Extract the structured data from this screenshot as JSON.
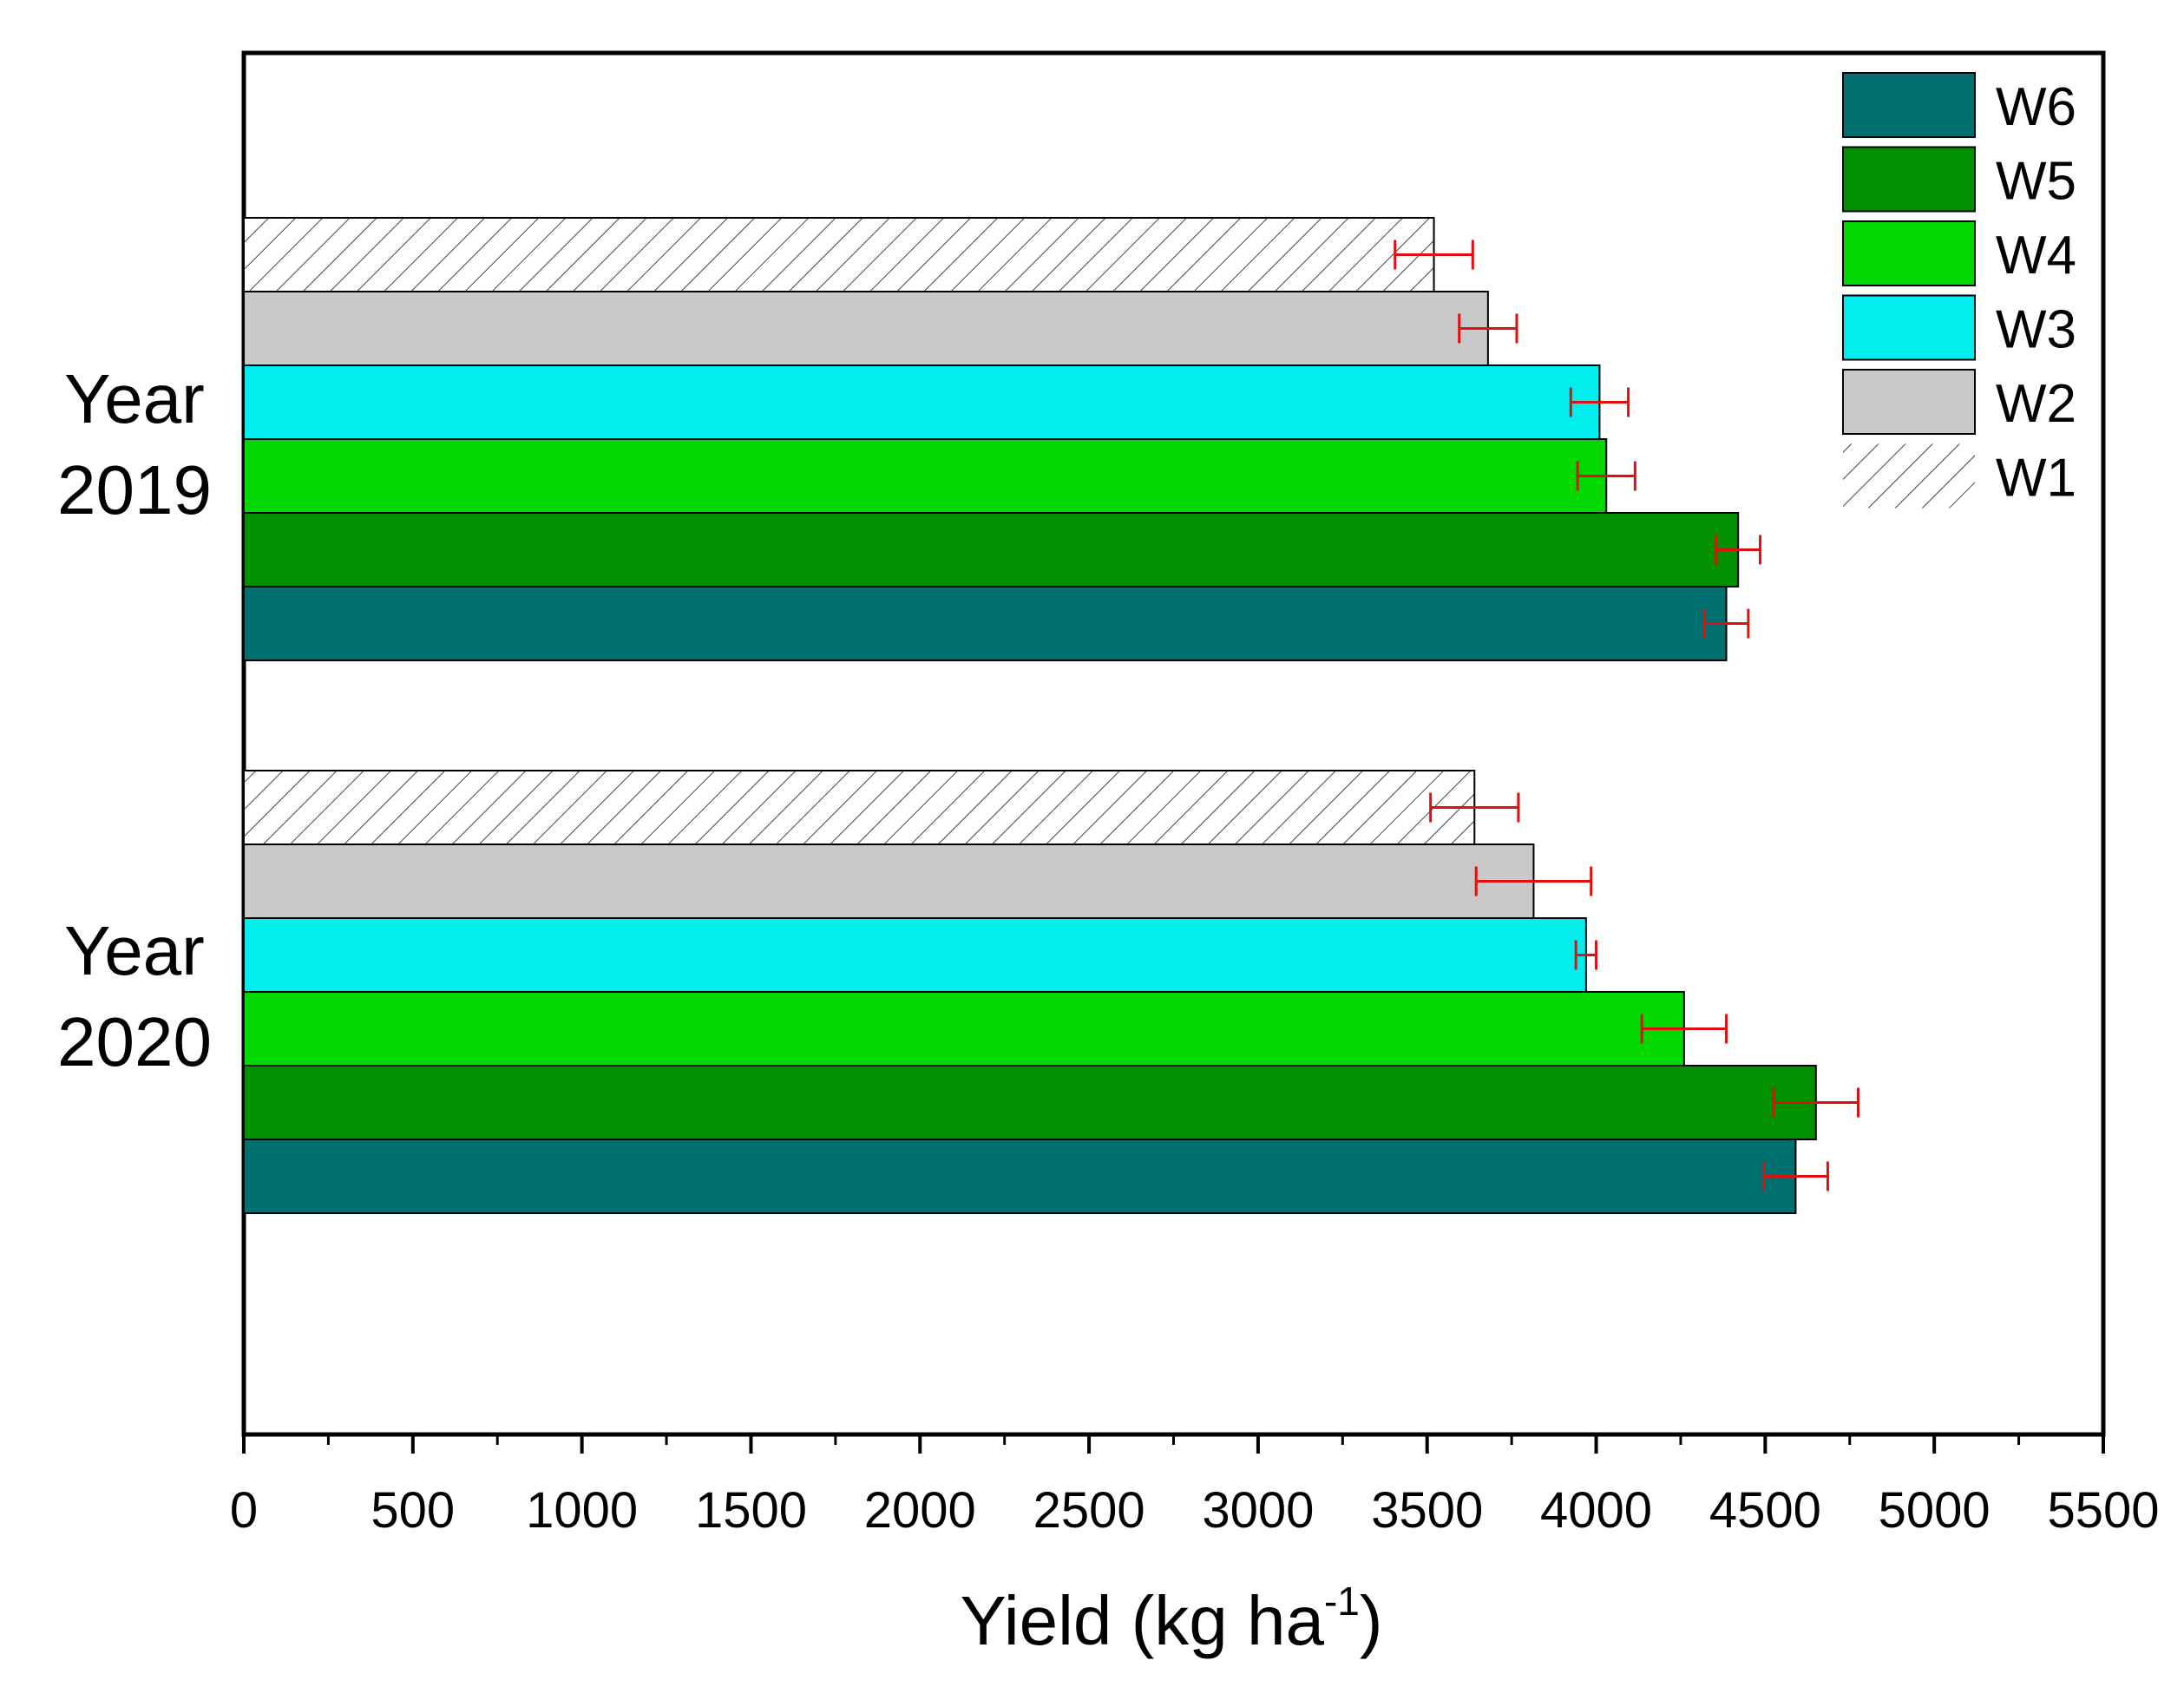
{
  "chart_data": {
    "type": "bar",
    "orientation": "horizontal",
    "title": "",
    "xlabel": "Yield (kg ha",
    "xlabel_superscript": "-1",
    "xlabel_close": ")",
    "ylabel": "",
    "xlim": [
      0,
      5500
    ],
    "xticks": [
      0,
      500,
      1000,
      1500,
      2000,
      2500,
      3000,
      3500,
      4000,
      4500,
      5000,
      5500
    ],
    "xtick_labels": [
      "0",
      "500",
      "1000",
      "1500",
      "2000",
      "2500",
      "3000",
      "3500",
      "4000",
      "4500",
      "5000",
      "5500"
    ],
    "categories": [
      {
        "line1": "Year",
        "line2": "2019"
      },
      {
        "line1": "Year",
        "line2": "2020"
      }
    ],
    "series": [
      {
        "name": "W1",
        "color": "#f2f2f2",
        "pattern": "hatch",
        "values": [
          3520,
          3640
        ],
        "errors": [
          115,
          130
        ]
      },
      {
        "name": "W2",
        "color": "#c8c8c8",
        "pattern": "solid",
        "values": [
          3680,
          3815
        ],
        "errors": [
          85,
          170
        ]
      },
      {
        "name": "W3",
        "color": "#00eeee",
        "pattern": "solid",
        "values": [
          4010,
          3970
        ],
        "errors": [
          85,
          30
        ]
      },
      {
        "name": "W4",
        "color": "#00d800",
        "pattern": "solid",
        "values": [
          4030,
          4260
        ],
        "errors": [
          85,
          125
        ]
      },
      {
        "name": "W5",
        "color": "#009000",
        "pattern": "solid",
        "values": [
          4420,
          4650
        ],
        "errors": [
          65,
          125
        ]
      },
      {
        "name": "W6",
        "color": "#007070",
        "pattern": "solid",
        "values": [
          4385,
          4590
        ],
        "errors": [
          65,
          95
        ]
      }
    ],
    "legend": {
      "position": "top-right",
      "order": [
        "W6",
        "W5",
        "W4",
        "W3",
        "W2",
        "W1"
      ]
    },
    "error_bar_color": "#e01010",
    "grid": false
  }
}
